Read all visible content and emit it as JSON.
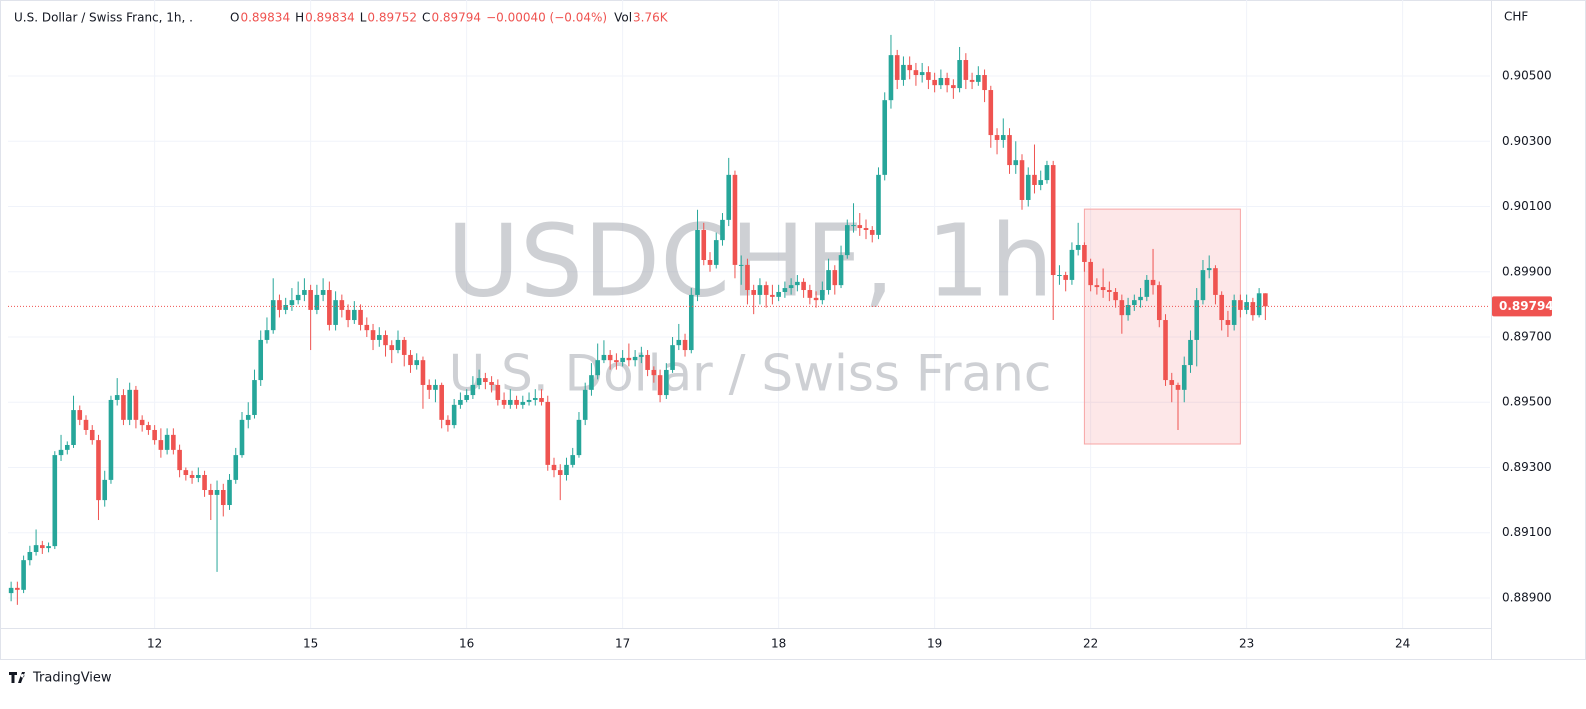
{
  "header": {
    "symbol": "U.S. Dollar / Swiss Franc, 1h, .",
    "ohlc": [
      {
        "label": "O",
        "value": "0.89834"
      },
      {
        "label": "H",
        "value": "0.89834"
      },
      {
        "label": "L",
        "value": "0.89752"
      },
      {
        "label": "C",
        "value": "0.89794"
      }
    ],
    "change": "−0.00040 (−0.04%)",
    "volume": {
      "label": "Vol",
      "value": "3.76K"
    }
  },
  "brand": "TradingView",
  "chart_data": {
    "type": "candlestick",
    "watermark": "USDCHF, 1h",
    "watermark_subtitle": "U.S. Dollar / Swiss Franc",
    "y_axis_label": "CHF",
    "up_color": "#26a69a",
    "down_color": "#ef5350",
    "grid": true,
    "xlim": [
      -0.5,
      237
    ],
    "ylim": [
      0.88808,
      0.90733
    ],
    "xticks": [
      {
        "value": 23,
        "label": "12"
      },
      {
        "value": 48,
        "label": "15"
      },
      {
        "value": 73,
        "label": "16"
      },
      {
        "value": 98,
        "label": "17"
      },
      {
        "value": 123,
        "label": "18"
      },
      {
        "value": 148,
        "label": "19"
      },
      {
        "value": 173,
        "label": "22"
      },
      {
        "value": 198,
        "label": "23"
      },
      {
        "value": 223,
        "label": "24"
      }
    ],
    "yticks": [
      {
        "value": 0.889,
        "label": "0.88900"
      },
      {
        "value": 0.891,
        "label": "0.89100"
      },
      {
        "value": 0.893,
        "label": "0.89300"
      },
      {
        "value": 0.895,
        "label": "0.89500"
      },
      {
        "value": 0.897,
        "label": "0.89700"
      },
      {
        "value": 0.899,
        "label": "0.89900"
      },
      {
        "value": 0.901,
        "label": "0.90100"
      },
      {
        "value": 0.903,
        "label": "0.90300"
      },
      {
        "value": 0.905,
        "label": "0.90500"
      }
    ],
    "last_price": {
      "value": 0.89794,
      "label": "0.89794"
    },
    "annotations": [
      {
        "type": "rectangle",
        "x": [
          172,
          197
        ],
        "y": [
          0.90092,
          0.89372
        ]
      }
    ],
    "candles": [
      [
        0.88915,
        0.8895,
        0.8889,
        0.88931
      ],
      [
        0.88931,
        0.8895,
        0.88879,
        0.88925
      ],
      [
        0.88925,
        0.8903,
        0.88915,
        0.89016
      ],
      [
        0.89016,
        0.8906,
        0.89,
        0.89041
      ],
      [
        0.89041,
        0.8911,
        0.8903,
        0.89062
      ],
      [
        0.89062,
        0.89075,
        0.89035,
        0.89053
      ],
      [
        0.89053,
        0.8907,
        0.8904,
        0.89059
      ],
      [
        0.89059,
        0.8935,
        0.8905,
        0.89338
      ],
      [
        0.89338,
        0.894,
        0.8932,
        0.89354
      ],
      [
        0.89354,
        0.8938,
        0.8934,
        0.89369
      ],
      [
        0.89369,
        0.8952,
        0.8936,
        0.89476
      ],
      [
        0.89476,
        0.8949,
        0.8943,
        0.89446
      ],
      [
        0.89446,
        0.8946,
        0.894,
        0.89415
      ],
      [
        0.89415,
        0.8943,
        0.8937,
        0.89384
      ],
      [
        0.89384,
        0.894,
        0.89139,
        0.892
      ],
      [
        0.892,
        0.8929,
        0.8918,
        0.89262
      ],
      [
        0.89262,
        0.8952,
        0.8925,
        0.89507
      ],
      [
        0.89507,
        0.89574,
        0.8949,
        0.89522
      ],
      [
        0.89522,
        0.8954,
        0.8943,
        0.89446
      ],
      [
        0.89446,
        0.8956,
        0.8943,
        0.89538
      ],
      [
        0.89538,
        0.8955,
        0.8942,
        0.89446
      ],
      [
        0.89446,
        0.8946,
        0.8941,
        0.8943
      ],
      [
        0.8943,
        0.8944,
        0.894,
        0.89415
      ],
      [
        0.89415,
        0.8943,
        0.8937,
        0.89384
      ],
      [
        0.89384,
        0.8942,
        0.8933,
        0.89354
      ],
      [
        0.89354,
        0.8942,
        0.8934,
        0.894
      ],
      [
        0.894,
        0.8942,
        0.8934,
        0.89354
      ],
      [
        0.89354,
        0.8937,
        0.8927,
        0.89292
      ],
      [
        0.89292,
        0.893,
        0.8926,
        0.89277
      ],
      [
        0.89277,
        0.8929,
        0.8925,
        0.89268
      ],
      [
        0.89268,
        0.893,
        0.89255,
        0.89277
      ],
      [
        0.89277,
        0.8929,
        0.8921,
        0.89231
      ],
      [
        0.89231,
        0.8925,
        0.89139,
        0.89216
      ],
      [
        0.89216,
        0.8926,
        0.8898,
        0.89231
      ],
      [
        0.89231,
        0.8925,
        0.8915,
        0.89185
      ],
      [
        0.89185,
        0.8928,
        0.8917,
        0.89262
      ],
      [
        0.89262,
        0.8936,
        0.8925,
        0.89338
      ],
      [
        0.89338,
        0.8947,
        0.8933,
        0.89446
      ],
      [
        0.89446,
        0.895,
        0.8942,
        0.89461
      ],
      [
        0.89461,
        0.896,
        0.8945,
        0.89568
      ],
      [
        0.89568,
        0.8972,
        0.8955,
        0.89691
      ],
      [
        0.89691,
        0.8976,
        0.8968,
        0.89721
      ],
      [
        0.89721,
        0.8988,
        0.8971,
        0.89813
      ],
      [
        0.89813,
        0.8983,
        0.8976,
        0.89783
      ],
      [
        0.89783,
        0.8982,
        0.8977,
        0.89798
      ],
      [
        0.89798,
        0.8985,
        0.8978,
        0.89813
      ],
      [
        0.89813,
        0.8987,
        0.898,
        0.89829
      ],
      [
        0.89829,
        0.8988,
        0.8981,
        0.89844
      ],
      [
        0.89844,
        0.8986,
        0.8966,
        0.89783
      ],
      [
        0.89783,
        0.8986,
        0.8977,
        0.89829
      ],
      [
        0.89829,
        0.8988,
        0.8981,
        0.89844
      ],
      [
        0.89844,
        0.8987,
        0.8972,
        0.89737
      ],
      [
        0.89737,
        0.8984,
        0.8972,
        0.89813
      ],
      [
        0.89813,
        0.8983,
        0.8976,
        0.89783
      ],
      [
        0.89783,
        0.898,
        0.8973,
        0.89752
      ],
      [
        0.89752,
        0.8981,
        0.8974,
        0.89783
      ],
      [
        0.89783,
        0.898,
        0.8972,
        0.89737
      ],
      [
        0.89737,
        0.8976,
        0.897,
        0.89721
      ],
      [
        0.89721,
        0.8974,
        0.8966,
        0.89691
      ],
      [
        0.89691,
        0.8973,
        0.8967,
        0.89706
      ],
      [
        0.89706,
        0.8972,
        0.8964,
        0.89675
      ],
      [
        0.89675,
        0.8969,
        0.8962,
        0.8966
      ],
      [
        0.8966,
        0.8972,
        0.8965,
        0.89691
      ],
      [
        0.89691,
        0.897,
        0.8961,
        0.89645
      ],
      [
        0.89645,
        0.8966,
        0.8959,
        0.89614
      ],
      [
        0.89614,
        0.8965,
        0.896,
        0.89629
      ],
      [
        0.89629,
        0.8964,
        0.8948,
        0.89553
      ],
      [
        0.89553,
        0.8957,
        0.8951,
        0.89538
      ],
      [
        0.89538,
        0.8957,
        0.895,
        0.89553
      ],
      [
        0.89553,
        0.8956,
        0.8942,
        0.89446
      ],
      [
        0.89446,
        0.8946,
        0.8941,
        0.8943
      ],
      [
        0.8943,
        0.8951,
        0.8942,
        0.89492
      ],
      [
        0.89492,
        0.8953,
        0.8948,
        0.89507
      ],
      [
        0.89507,
        0.8954,
        0.895,
        0.89522
      ],
      [
        0.89522,
        0.8958,
        0.8951,
        0.89553
      ],
      [
        0.89553,
        0.896,
        0.8954,
        0.89574
      ],
      [
        0.89574,
        0.8959,
        0.8954,
        0.89562
      ],
      [
        0.89562,
        0.8958,
        0.8953,
        0.89553
      ],
      [
        0.89553,
        0.8957,
        0.8949,
        0.89507
      ],
      [
        0.89507,
        0.8953,
        0.8948,
        0.89492
      ],
      [
        0.89492,
        0.8954,
        0.8948,
        0.89507
      ],
      [
        0.89507,
        0.8952,
        0.8948,
        0.89492
      ],
      [
        0.89492,
        0.8952,
        0.8948,
        0.89501
      ],
      [
        0.89501,
        0.8953,
        0.8949,
        0.89507
      ],
      [
        0.89507,
        0.8954,
        0.8949,
        0.89513
      ],
      [
        0.89513,
        0.8954,
        0.8949,
        0.89501
      ],
      [
        0.89501,
        0.8952,
        0.8929,
        0.89308
      ],
      [
        0.89308,
        0.8933,
        0.8927,
        0.89292
      ],
      [
        0.89292,
        0.8931,
        0.892,
        0.89277
      ],
      [
        0.89277,
        0.8933,
        0.8926,
        0.89308
      ],
      [
        0.89308,
        0.8936,
        0.893,
        0.89338
      ],
      [
        0.89338,
        0.8947,
        0.8933,
        0.89446
      ],
      [
        0.89446,
        0.8956,
        0.8943,
        0.89538
      ],
      [
        0.89538,
        0.8962,
        0.8952,
        0.89583
      ],
      [
        0.89583,
        0.8968,
        0.8957,
        0.89629
      ],
      [
        0.89629,
        0.8969,
        0.8962,
        0.89645
      ],
      [
        0.89645,
        0.8966,
        0.896,
        0.89629
      ],
      [
        0.89629,
        0.8965,
        0.896,
        0.89623
      ],
      [
        0.89623,
        0.8966,
        0.8961,
        0.89636
      ],
      [
        0.89636,
        0.8968,
        0.8961,
        0.89629
      ],
      [
        0.89629,
        0.8966,
        0.8961,
        0.89639
      ],
      [
        0.89639,
        0.8967,
        0.8962,
        0.89645
      ],
      [
        0.89645,
        0.8966,
        0.8958,
        0.89599
      ],
      [
        0.89599,
        0.8961,
        0.8956,
        0.89583
      ],
      [
        0.89583,
        0.896,
        0.895,
        0.89522
      ],
      [
        0.89522,
        0.8962,
        0.8951,
        0.89599
      ],
      [
        0.89599,
        0.897,
        0.8959,
        0.89675
      ],
      [
        0.89675,
        0.8974,
        0.8966,
        0.89691
      ],
      [
        0.89691,
        0.8971,
        0.8964,
        0.8966
      ],
      [
        0.8966,
        0.8985,
        0.8965,
        0.89829
      ],
      [
        0.89829,
        0.9009,
        0.8981,
        0.90028
      ],
      [
        0.90028,
        0.9005,
        0.8992,
        0.89936
      ],
      [
        0.89936,
        0.8996,
        0.899,
        0.89921
      ],
      [
        0.89921,
        0.9002,
        0.8991,
        0.89997
      ],
      [
        0.89997,
        0.9008,
        0.8998,
        0.90059
      ],
      [
        0.90059,
        0.90249,
        0.9004,
        0.90197
      ],
      [
        0.90197,
        0.9021,
        0.8988,
        0.89921
      ],
      [
        0.89921,
        0.8995,
        0.8986,
        0.89921
      ],
      [
        0.89921,
        0.8994,
        0.898,
        0.89844
      ],
      [
        0.89844,
        0.8986,
        0.8977,
        0.89829
      ],
      [
        0.89829,
        0.8988,
        0.898,
        0.89859
      ],
      [
        0.89859,
        0.8987,
        0.8979,
        0.89829
      ],
      [
        0.89829,
        0.8986,
        0.898,
        0.89823
      ],
      [
        0.89823,
        0.8986,
        0.8981,
        0.89838
      ],
      [
        0.89838,
        0.8987,
        0.8982,
        0.8985
      ],
      [
        0.8985,
        0.8988,
        0.8983,
        0.89859
      ],
      [
        0.89859,
        0.8989,
        0.8984,
        0.89869
      ],
      [
        0.89869,
        0.8988,
        0.8982,
        0.89844
      ],
      [
        0.89844,
        0.8986,
        0.898,
        0.8982
      ],
      [
        0.8982,
        0.8984,
        0.8979,
        0.89813
      ],
      [
        0.89813,
        0.8987,
        0.898,
        0.89844
      ],
      [
        0.89844,
        0.8994,
        0.8983,
        0.89905
      ],
      [
        0.89905,
        0.8992,
        0.8983,
        0.89859
      ],
      [
        0.89859,
        0.8998,
        0.8985,
        0.89951
      ],
      [
        0.89951,
        0.9006,
        0.8994,
        0.90043
      ],
      [
        0.90043,
        0.9011,
        0.9002,
        0.90043
      ],
      [
        0.90043,
        0.9008,
        0.9001,
        0.90034
      ],
      [
        0.90034,
        0.9006,
        0.9,
        0.90028
      ],
      [
        0.90028,
        0.9004,
        0.8999,
        0.90013
      ],
      [
        0.90013,
        0.9022,
        0.9,
        0.90197
      ],
      [
        0.90197,
        0.9045,
        0.9018,
        0.90426
      ],
      [
        0.90426,
        0.90626,
        0.904,
        0.90564
      ],
      [
        0.90564,
        0.9058,
        0.9046,
        0.90488
      ],
      [
        0.90488,
        0.9056,
        0.9047,
        0.90534
      ],
      [
        0.90534,
        0.9056,
        0.9049,
        0.90518
      ],
      [
        0.90518,
        0.9054,
        0.9047,
        0.90503
      ],
      [
        0.90503,
        0.9054,
        0.9048,
        0.90512
      ],
      [
        0.90512,
        0.9053,
        0.9046,
        0.90488
      ],
      [
        0.90488,
        0.9051,
        0.9045,
        0.90472
      ],
      [
        0.90472,
        0.9052,
        0.9046,
        0.90494
      ],
      [
        0.90494,
        0.9051,
        0.9045,
        0.90472
      ],
      [
        0.90472,
        0.9049,
        0.9043,
        0.90463
      ],
      [
        0.90463,
        0.90589,
        0.9045,
        0.90549
      ],
      [
        0.90549,
        0.9057,
        0.9046,
        0.90488
      ],
      [
        0.90488,
        0.9051,
        0.9046,
        0.90482
      ],
      [
        0.90482,
        0.9053,
        0.9047,
        0.90503
      ],
      [
        0.90503,
        0.9052,
        0.9042,
        0.90457
      ],
      [
        0.90457,
        0.9047,
        0.9028,
        0.90319
      ],
      [
        0.90319,
        0.9034,
        0.9026,
        0.90304
      ],
      [
        0.90304,
        0.9037,
        0.9028,
        0.90319
      ],
      [
        0.90319,
        0.9034,
        0.902,
        0.90227
      ],
      [
        0.90227,
        0.903,
        0.902,
        0.90242
      ],
      [
        0.90242,
        0.9026,
        0.9009,
        0.9012
      ],
      [
        0.9012,
        0.9022,
        0.901,
        0.90197
      ],
      [
        0.90197,
        0.9029,
        0.9014,
        0.90166
      ],
      [
        0.90166,
        0.9021,
        0.9015,
        0.90181
      ],
      [
        0.90181,
        0.9024,
        0.9017,
        0.90227
      ],
      [
        0.90227,
        0.9024,
        0.89752,
        0.8989
      ],
      [
        0.8989,
        0.8992,
        0.8986,
        0.8989
      ],
      [
        0.8989,
        0.899,
        0.8984,
        0.89875
      ],
      [
        0.89875,
        0.8999,
        0.8986,
        0.89967
      ],
      [
        0.89967,
        0.9005,
        0.8995,
        0.89982
      ],
      [
        0.89982,
        0.8999,
        0.899,
        0.8993
      ],
      [
        0.8993,
        0.8994,
        0.8984,
        0.89859
      ],
      [
        0.89859,
        0.8988,
        0.8983,
        0.89853
      ],
      [
        0.89853,
        0.8991,
        0.8982,
        0.89844
      ],
      [
        0.89844,
        0.8987,
        0.8981,
        0.89838
      ],
      [
        0.89838,
        0.8985,
        0.8979,
        0.89813
      ],
      [
        0.89813,
        0.8983,
        0.8971,
        0.89767
      ],
      [
        0.89767,
        0.8982,
        0.8975,
        0.89798
      ],
      [
        0.89798,
        0.8983,
        0.8978,
        0.89813
      ],
      [
        0.89813,
        0.8985,
        0.8979,
        0.89823
      ],
      [
        0.89823,
        0.8989,
        0.8981,
        0.89875
      ],
      [
        0.89875,
        0.8997,
        0.8983,
        0.89859
      ],
      [
        0.89859,
        0.8987,
        0.8973,
        0.89752
      ],
      [
        0.89752,
        0.8977,
        0.8955,
        0.89568
      ],
      [
        0.89568,
        0.8959,
        0.895,
        0.89553
      ],
      [
        0.89553,
        0.8956,
        0.89415,
        0.89538
      ],
      [
        0.89538,
        0.8964,
        0.895,
        0.89614
      ],
      [
        0.89614,
        0.8972,
        0.8959,
        0.89691
      ],
      [
        0.89691,
        0.8985,
        0.8961,
        0.89813
      ],
      [
        0.89813,
        0.89936,
        0.898,
        0.89905
      ],
      [
        0.89905,
        0.8995,
        0.8988,
        0.89911
      ],
      [
        0.89911,
        0.8992,
        0.898,
        0.89829
      ],
      [
        0.89829,
        0.8984,
        0.8972,
        0.89752
      ],
      [
        0.89752,
        0.8978,
        0.897,
        0.89737
      ],
      [
        0.89737,
        0.8983,
        0.8972,
        0.89813
      ],
      [
        0.89813,
        0.8983,
        0.8976,
        0.89783
      ],
      [
        0.89783,
        0.8983,
        0.8977,
        0.89807
      ],
      [
        0.89807,
        0.8982,
        0.8975,
        0.89767
      ],
      [
        0.89767,
        0.8985,
        0.8976,
        0.89834
      ],
      [
        0.89834,
        0.89834,
        0.89752,
        0.89794
      ]
    ]
  }
}
